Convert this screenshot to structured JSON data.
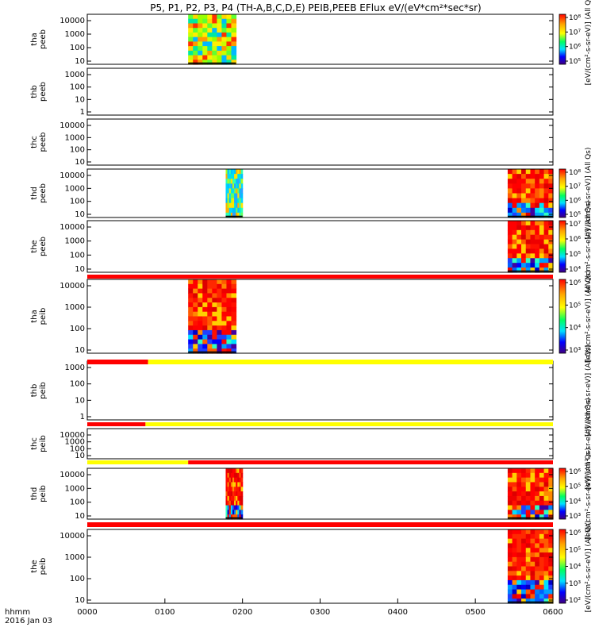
{
  "title": "P5, P1, P2, P3, P4 (TH-A,B,C,D,E) PEIB,PEEB EFlux eV/(eV*cm²*sec*sr)",
  "footer": {
    "time_label": "hhmm",
    "date_label": "2016 Jan 03"
  },
  "chart_data": [
    {
      "type": "heatmap",
      "panel": "tha-peeb",
      "ylabel": [
        "tha",
        "peeb"
      ],
      "ytick_labels": [
        "10000",
        "1000",
        "100",
        "10"
      ],
      "x_range": [
        "0000",
        "0600"
      ],
      "data_blocks": [
        {
          "x_start": "0118",
          "x_end": "0155",
          "dominant": "yellow-green"
        }
      ],
      "colorbar": {
        "labels": [
          "10⁸",
          "10⁷",
          "10⁶",
          "10⁵"
        ],
        "title": "[eV/(cm²-s-sr-eV)] (All Qs)"
      }
    },
    {
      "type": "heatmap",
      "panel": "thb-peeb",
      "ylabel": [
        "thb",
        "peeb"
      ],
      "ytick_labels": [
        "1000",
        "100",
        "10",
        "1"
      ],
      "x_range": [
        "0000",
        "0600"
      ],
      "data_blocks": []
    },
    {
      "type": "heatmap",
      "panel": "thc-peeb",
      "ylabel": [
        "thc",
        "peeb"
      ],
      "ytick_labels": [
        "10000",
        "1000",
        "100",
        "10"
      ],
      "x_range": [
        "0000",
        "0600"
      ],
      "data_blocks": []
    },
    {
      "type": "heatmap",
      "panel": "thd-peeb",
      "ylabel": [
        "thd",
        "peeb"
      ],
      "ytick_labels": [
        "10000",
        "1000",
        "100",
        "10"
      ],
      "x_range": [
        "0000",
        "0600"
      ],
      "data_blocks": [
        {
          "x_start": "0147",
          "x_end": "0200",
          "dominant": "cyan-green"
        },
        {
          "x_start": "0525",
          "x_end": "0600",
          "dominant": "red"
        }
      ],
      "colorbar": {
        "labels": [
          "10⁸",
          "10⁷",
          "10⁶",
          "10⁵"
        ],
        "title": "[eV/(cm²-s-sr-eV)] (All Qs)"
      }
    },
    {
      "type": "heatmap",
      "panel": "the-peeb",
      "ylabel": [
        "the",
        "peeb"
      ],
      "ytick_labels": [
        "10000",
        "1000",
        "100",
        "10"
      ],
      "x_range": [
        "0000",
        "0600"
      ],
      "data_blocks": [
        {
          "x_start": "0525",
          "x_end": "0600",
          "dominant": "red"
        }
      ],
      "colorbar": {
        "labels": [
          "10⁷",
          "10⁶",
          "10⁵",
          "10⁴"
        ],
        "title": "[eV/(cm²-s-sr-eV)] (All Qs)"
      }
    },
    {
      "type": "heatmap",
      "panel": "tha-peib",
      "ylabel": [
        "tha",
        "peib"
      ],
      "ytick_labels": [
        "10000",
        "1000",
        "100",
        "10"
      ],
      "x_range": [
        "0000",
        "0600"
      ],
      "data_blocks": [
        {
          "x_start": "0118",
          "x_end": "0155",
          "dominant": "red"
        }
      ],
      "colorbar": {
        "labels": [
          "10⁶",
          "10⁵",
          "10⁴",
          "10³"
        ],
        "title": "[eV/(cm²-s-sr-eV)] (All Qs)"
      }
    },
    {
      "type": "heatmap",
      "panel": "thb-peib",
      "ylabel": [
        "thb",
        "peib"
      ],
      "ytick_labels": [
        "1000",
        "100",
        "10",
        "1"
      ],
      "x_range": [
        "0000",
        "0600"
      ],
      "data_blocks": [],
      "colorbar": {
        "labels": [],
        "title": "[eV/(cm²-s-sr-eV)] (All Qs)"
      }
    },
    {
      "type": "heatmap",
      "panel": "thc-peib",
      "ylabel": [
        "thc",
        "peib"
      ],
      "ytick_labels": [
        "10000",
        "1000",
        "100",
        "10"
      ],
      "x_range": [
        "0000",
        "0600"
      ],
      "data_blocks": [],
      "colorbar": {
        "labels": [],
        "title": "[eV/(cm²-s-sr-eV)] (All Qs)"
      }
    },
    {
      "type": "heatmap",
      "panel": "thd-peib",
      "ylabel": [
        "thd",
        "peib"
      ],
      "ytick_labels": [
        "10000",
        "1000",
        "100",
        "10"
      ],
      "x_range": [
        "0000",
        "0600"
      ],
      "data_blocks": [
        {
          "x_start": "0147",
          "x_end": "0200",
          "dominant": "red"
        },
        {
          "x_start": "0525",
          "x_end": "0600",
          "dominant": "red"
        }
      ],
      "colorbar": {
        "labels": [
          "10⁶",
          "10⁵",
          "10⁴",
          "10³"
        ],
        "title": "[eV/(cm²-s-sr-eV)] (All Qs)"
      }
    },
    {
      "type": "heatmap",
      "panel": "the-peib",
      "ylabel": [
        "the",
        "peib"
      ],
      "ytick_labels": [
        "10000",
        "1000",
        "100",
        "10"
      ],
      "x_range": [
        "0000",
        "0600"
      ],
      "data_blocks": [
        {
          "x_start": "0525",
          "x_end": "0600",
          "dominant": "red"
        }
      ],
      "colorbar": {
        "labels": [
          "10⁶",
          "10⁵",
          "10⁴",
          "10³",
          "10²"
        ],
        "title": "[eV/(cm²-s-sr-eV)] (All Qs)"
      }
    }
  ],
  "x_axis": {
    "tick_labels": [
      "0000",
      "0100",
      "0200",
      "0300",
      "0400",
      "0500",
      "0600"
    ]
  },
  "status_bars": [
    {
      "name": "bar-after-the-peeb",
      "segments": [
        {
          "from": "0000",
          "to": "0600",
          "color": "#ff0000"
        }
      ]
    },
    {
      "name": "bar-after-tha-peib",
      "segments": [
        {
          "from": "0000",
          "to": "0047",
          "color": "#ff0000"
        },
        {
          "from": "0047",
          "to": "0600",
          "color": "#ffff00"
        }
      ]
    },
    {
      "name": "bar-after-thb-peib",
      "segments": [
        {
          "from": "0000",
          "to": "0045",
          "color": "#ff0000"
        },
        {
          "from": "0045",
          "to": "0600",
          "color": "#ffff00"
        }
      ]
    },
    {
      "name": "bar-after-thc-peib",
      "segments": [
        {
          "from": "0000",
          "to": "0078",
          "color": "#ffff00"
        },
        {
          "from": "0078",
          "to": "0600",
          "color": "#ff0000"
        }
      ]
    },
    {
      "name": "bar-after-thd-peib",
      "segments": [
        {
          "from": "0000",
          "to": "0600",
          "color": "#ff0000"
        }
      ]
    }
  ]
}
